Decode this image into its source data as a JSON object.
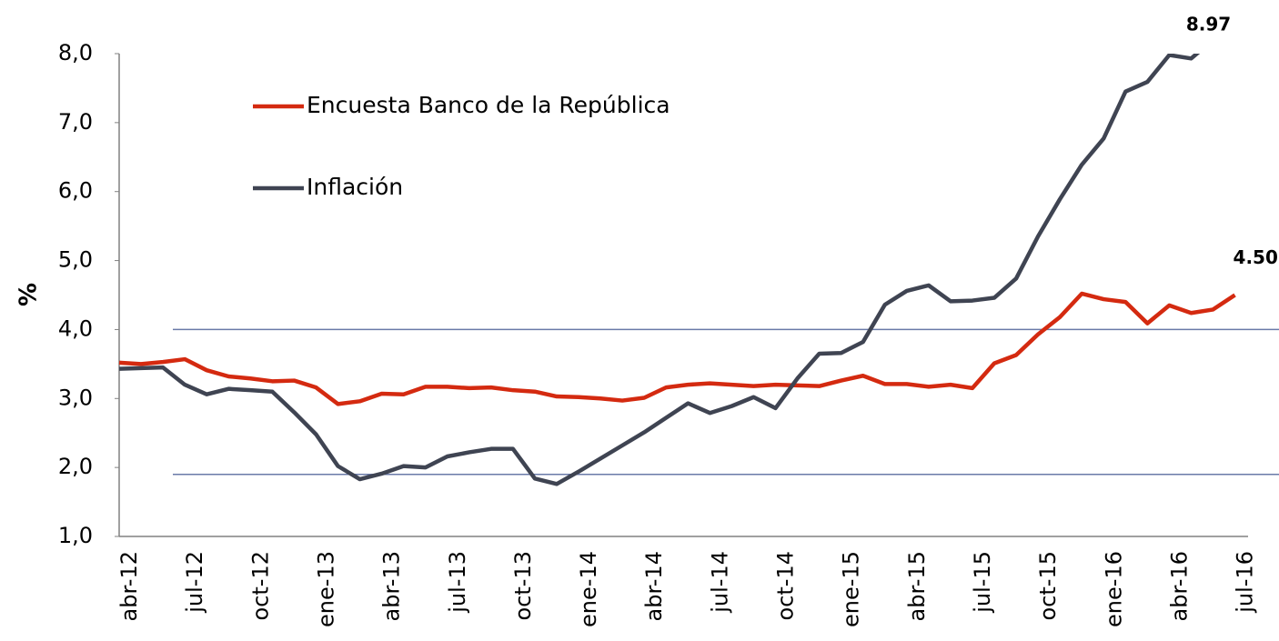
{
  "chart_data": {
    "type": "line",
    "y_label": "%",
    "categories": [
      "abr-12",
      null,
      null,
      "jul-12",
      null,
      null,
      "oct-12",
      null,
      null,
      "ene-13",
      null,
      null,
      "abr-13",
      null,
      null,
      "jul-13",
      null,
      null,
      "oct-13",
      null,
      null,
      "ene-14",
      null,
      null,
      "abr-14",
      null,
      null,
      "jul-14",
      null,
      null,
      "oct-14",
      null,
      null,
      "ene-15",
      null,
      null,
      "abr-15",
      null,
      null,
      "jul-15",
      null,
      null,
      "oct-15",
      null,
      null,
      "ene-16",
      null,
      null,
      "abr-16",
      null,
      null,
      "jul-16"
    ],
    "series": [
      {
        "name": "Encuesta Banco de la República",
        "color": "#d42a10",
        "values": [
          3.52,
          3.5,
          3.53,
          3.57,
          3.41,
          3.32,
          3.29,
          3.25,
          3.26,
          3.16,
          2.92,
          2.96,
          3.07,
          3.06,
          3.17,
          3.17,
          3.15,
          3.16,
          3.12,
          3.1,
          3.03,
          3.02,
          3.0,
          2.97,
          3.01,
          3.16,
          3.2,
          3.22,
          3.2,
          3.18,
          3.2,
          3.19,
          3.18,
          3.26,
          3.33,
          3.21,
          3.21,
          3.17,
          3.2,
          3.15,
          3.51,
          3.63,
          3.93,
          4.18,
          4.52,
          4.44,
          4.4,
          4.09,
          4.35,
          4.24,
          4.29,
          4.5
        ],
        "value_labels": [
          null,
          null,
          null,
          null,
          null,
          null,
          null,
          null,
          null,
          null,
          null,
          null,
          null,
          null,
          null,
          null,
          null,
          null,
          null,
          null,
          null,
          null,
          null,
          null,
          null,
          null,
          null,
          null,
          null,
          null,
          null,
          null,
          null,
          null,
          null,
          null,
          null,
          null,
          null,
          null,
          null,
          null,
          null,
          null,
          null,
          null,
          null,
          null,
          null,
          null,
          null,
          "4.50"
        ]
      },
      {
        "name": "Inflación",
        "color": "#3f4452",
        "values": [
          3.43,
          3.44,
          3.45,
          3.2,
          3.06,
          3.14,
          3.12,
          3.1,
          2.8,
          2.48,
          2.02,
          1.83,
          1.91,
          2.02,
          2.0,
          2.16,
          2.22,
          2.27,
          2.27,
          1.84,
          1.76,
          1.94,
          2.13,
          2.32,
          2.51,
          2.72,
          2.93,
          2.79,
          2.89,
          3.02,
          2.86,
          3.29,
          3.65,
          3.66,
          3.82,
          4.36,
          4.56,
          4.64,
          4.41,
          4.42,
          4.46,
          4.74,
          5.35,
          5.89,
          6.39,
          6.77,
          7.45,
          7.59,
          7.98,
          7.93,
          8.2,
          8.97
        ],
        "value_labels": [
          null,
          null,
          null,
          null,
          null,
          null,
          null,
          null,
          null,
          null,
          null,
          null,
          null,
          null,
          null,
          null,
          null,
          null,
          null,
          null,
          null,
          null,
          null,
          null,
          null,
          null,
          null,
          null,
          null,
          null,
          null,
          null,
          null,
          null,
          null,
          null,
          null,
          null,
          null,
          null,
          null,
          null,
          null,
          null,
          null,
          null,
          null,
          null,
          null,
          null,
          null,
          "8.97"
        ]
      }
    ],
    "ylim": [
      1,
      8
    ],
    "yticks": [
      {
        "value": 1,
        "label": "1,0"
      },
      {
        "value": 2,
        "label": "2,0"
      },
      {
        "value": 3,
        "label": "3,0"
      },
      {
        "value": 4,
        "label": "4,0"
      },
      {
        "value": 5,
        "label": "5,0"
      },
      {
        "value": 6,
        "label": "6,0"
      },
      {
        "value": 7,
        "label": "7,0"
      },
      {
        "value": 8,
        "label": "8,0"
      }
    ],
    "reference_lines": [
      1.9,
      4
    ],
    "reference_color": "#6a7aa8",
    "grid": false
  }
}
